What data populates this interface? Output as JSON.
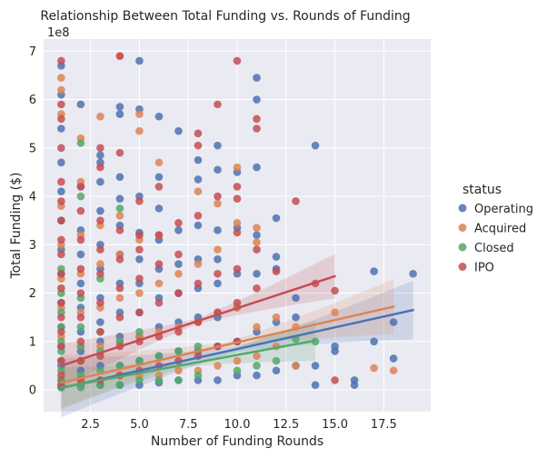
{
  "chart_data": {
    "type": "scatter",
    "title": "Relationship Between Total Funding vs. Rounds of Funding",
    "xlabel": "Number of Funding Rounds",
    "ylabel": "Total Funding ($)",
    "y_offset_label": "1e8",
    "xlim": [
      0.1,
      19.9
    ],
    "ylim": [
      -0.45,
      7.25
    ],
    "x_ticks": [
      2.5,
      5.0,
      7.5,
      10.0,
      12.5,
      15.0,
      17.5
    ],
    "x_tick_labels": [
      "2.5",
      "5.0",
      "7.5",
      "10.0",
      "12.5",
      "15.0",
      "17.5"
    ],
    "y_ticks": [
      0,
      1,
      2,
      3,
      4,
      5,
      6,
      7
    ],
    "y_tick_labels": [
      "0",
      "1",
      "2",
      "3",
      "4",
      "5",
      "6",
      "7"
    ],
    "grid": true,
    "background": "#eaeaf2",
    "legend": {
      "title": "status",
      "placement": "right"
    },
    "series": [
      {
        "name": "Operating",
        "color": "#4c72b0",
        "points": [
          [
            1,
            0.05
          ],
          [
            1,
            0.2
          ],
          [
            1,
            0.5
          ],
          [
            1,
            0.9
          ],
          [
            1,
            1.3
          ],
          [
            1,
            1.8
          ],
          [
            1,
            2.4
          ],
          [
            1,
            2.9
          ],
          [
            1,
            3.5
          ],
          [
            1,
            4.1
          ],
          [
            1,
            4.7
          ],
          [
            1,
            5.4
          ],
          [
            1,
            6.1
          ],
          [
            1,
            6.7
          ],
          [
            2,
            0.1
          ],
          [
            2,
            0.4
          ],
          [
            2,
            0.8
          ],
          [
            2,
            1.2
          ],
          [
            2,
            1.7
          ],
          [
            2,
            2.2
          ],
          [
            2,
            2.8
          ],
          [
            2,
            3.3
          ],
          [
            2,
            4.2
          ],
          [
            2,
            5.9
          ],
          [
            3,
            0.1
          ],
          [
            3,
            0.5
          ],
          [
            3,
            1.0
          ],
          [
            3,
            1.4
          ],
          [
            3,
            1.9
          ],
          [
            3,
            2.5
          ],
          [
            3,
            3.0
          ],
          [
            3,
            3.7
          ],
          [
            3,
            4.3
          ],
          [
            3,
            4.7
          ],
          [
            3,
            4.85
          ],
          [
            4,
            0.1
          ],
          [
            4,
            0.5
          ],
          [
            4,
            1.1
          ],
          [
            4,
            1.6
          ],
          [
            4,
            2.2
          ],
          [
            4,
            2.8
          ],
          [
            4,
            3.4
          ],
          [
            4,
            3.95
          ],
          [
            4,
            4.4
          ],
          [
            4,
            5.7
          ],
          [
            4,
            5.85
          ],
          [
            5,
            0.1
          ],
          [
            5,
            0.6
          ],
          [
            5,
            1.1
          ],
          [
            5,
            1.6
          ],
          [
            5,
            2.2
          ],
          [
            5,
            2.7
          ],
          [
            5,
            3.25
          ],
          [
            5,
            4.0
          ],
          [
            5,
            5.8
          ],
          [
            5,
            6.8
          ],
          [
            6,
            0.15
          ],
          [
            6,
            0.7
          ],
          [
            6,
            1.3
          ],
          [
            6,
            1.9
          ],
          [
            6,
            2.5
          ],
          [
            6,
            3.1
          ],
          [
            6,
            3.75
          ],
          [
            6,
            4.4
          ],
          [
            6,
            5.65
          ],
          [
            7,
            0.2
          ],
          [
            7,
            0.8
          ],
          [
            7,
            1.4
          ],
          [
            7,
            2.0
          ],
          [
            7,
            2.6
          ],
          [
            7,
            3.3
          ],
          [
            7,
            5.35
          ],
          [
            8,
            0.2
          ],
          [
            8,
            0.8
          ],
          [
            8,
            1.5
          ],
          [
            8,
            2.1
          ],
          [
            8,
            2.7
          ],
          [
            8,
            3.4
          ],
          [
            8,
            4.35
          ],
          [
            8,
            4.75
          ],
          [
            9,
            0.2
          ],
          [
            9,
            0.9
          ],
          [
            9,
            1.5
          ],
          [
            9,
            2.2
          ],
          [
            9,
            2.7
          ],
          [
            9,
            3.3
          ],
          [
            9,
            4.55
          ],
          [
            9,
            5.05
          ],
          [
            10,
            0.3
          ],
          [
            10,
            1.0
          ],
          [
            10,
            1.7
          ],
          [
            10,
            2.4
          ],
          [
            10,
            3.35
          ],
          [
            10,
            4.5
          ],
          [
            11,
            0.3
          ],
          [
            11,
            1.2
          ],
          [
            11,
            2.4
          ],
          [
            11,
            3.2
          ],
          [
            11,
            4.6
          ],
          [
            11,
            6.0
          ],
          [
            11,
            6.45
          ],
          [
            12,
            0.4
          ],
          [
            12,
            1.4
          ],
          [
            12,
            2.5
          ],
          [
            12,
            2.75
          ],
          [
            12,
            3.55
          ],
          [
            13,
            0.5
          ],
          [
            13,
            1.5
          ],
          [
            13,
            1.9
          ],
          [
            14,
            0.5
          ],
          [
            14,
            0.1
          ],
          [
            14,
            5.05
          ],
          [
            15,
            0.8
          ],
          [
            15,
            0.9
          ],
          [
            16,
            0.1
          ],
          [
            16,
            0.2
          ],
          [
            17,
            1.0
          ],
          [
            17,
            2.45
          ],
          [
            18,
            0.65
          ],
          [
            18,
            1.4
          ],
          [
            19,
            2.4
          ]
        ],
        "fit": {
          "x_start": 1,
          "x_end": 19,
          "y_start": 0.04,
          "y_end": 1.65
        }
      },
      {
        "name": "Acquired",
        "color": "#dd8452",
        "points": [
          [
            1,
            0.1
          ],
          [
            1,
            0.6
          ],
          [
            1,
            1.1
          ],
          [
            1,
            1.7
          ],
          [
            1,
            2.3
          ],
          [
            1,
            3.0
          ],
          [
            1,
            3.8
          ],
          [
            1,
            5.7
          ],
          [
            1,
            6.2
          ],
          [
            1,
            6.45
          ],
          [
            2,
            0.2
          ],
          [
            2,
            0.9
          ],
          [
            2,
            1.6
          ],
          [
            2,
            2.4
          ],
          [
            2,
            3.2
          ],
          [
            2,
            4.3
          ],
          [
            2,
            5.2
          ],
          [
            3,
            0.2
          ],
          [
            3,
            0.9
          ],
          [
            3,
            1.7
          ],
          [
            3,
            2.6
          ],
          [
            3,
            3.4
          ],
          [
            3,
            5.65
          ],
          [
            4,
            0.3
          ],
          [
            4,
            1.0
          ],
          [
            4,
            1.9
          ],
          [
            4,
            2.8
          ],
          [
            4,
            3.6
          ],
          [
            4,
            6.9
          ],
          [
            5,
            0.3
          ],
          [
            5,
            1.1
          ],
          [
            5,
            2.0
          ],
          [
            5,
            3.1
          ],
          [
            5,
            5.35
          ],
          [
            5,
            5.7
          ],
          [
            6,
            0.3
          ],
          [
            6,
            1.2
          ],
          [
            6,
            2.2
          ],
          [
            6,
            3.2
          ],
          [
            6,
            4.7
          ],
          [
            7,
            0.4
          ],
          [
            7,
            1.3
          ],
          [
            7,
            2.4
          ],
          [
            8,
            0.4
          ],
          [
            8,
            1.4
          ],
          [
            8,
            2.6
          ],
          [
            8,
            4.1
          ],
          [
            9,
            0.5
          ],
          [
            9,
            1.6
          ],
          [
            9,
            2.9
          ],
          [
            9,
            3.85
          ],
          [
            10,
            0.6
          ],
          [
            10,
            1.7
          ],
          [
            10,
            3.45
          ],
          [
            10,
            4.6
          ],
          [
            11,
            0.7
          ],
          [
            11,
            1.3
          ],
          [
            11,
            3.05
          ],
          [
            11,
            3.35
          ],
          [
            12,
            0.9
          ],
          [
            12,
            1.5
          ],
          [
            13,
            0.5
          ],
          [
            13,
            1.3
          ],
          [
            15,
            1.6
          ],
          [
            17,
            0.45
          ],
          [
            18,
            0.4
          ]
        ],
        "fit": {
          "x_start": 1,
          "x_end": 18,
          "y_start": 0.15,
          "y_end": 1.72
        }
      },
      {
        "name": "Closed",
        "color": "#55a868",
        "points": [
          [
            1,
            0.05
          ],
          [
            1,
            0.2
          ],
          [
            1,
            0.4
          ],
          [
            1,
            0.6
          ],
          [
            1,
            0.8
          ],
          [
            1,
            1.0
          ],
          [
            1,
            1.3
          ],
          [
            1,
            1.6
          ],
          [
            1,
            2.0
          ],
          [
            1,
            2.5
          ],
          [
            2,
            0.05
          ],
          [
            2,
            0.3
          ],
          [
            2,
            0.6
          ],
          [
            2,
            0.9
          ],
          [
            2,
            1.3
          ],
          [
            2,
            1.9
          ],
          [
            2,
            4.0
          ],
          [
            2,
            5.1
          ],
          [
            3,
            0.1
          ],
          [
            3,
            0.4
          ],
          [
            3,
            0.8
          ],
          [
            3,
            1.2
          ],
          [
            3,
            2.3
          ],
          [
            4,
            0.1
          ],
          [
            4,
            0.5
          ],
          [
            4,
            1.0
          ],
          [
            4,
            3.75
          ],
          [
            5,
            0.2
          ],
          [
            5,
            0.6
          ],
          [
            5,
            1.2
          ],
          [
            6,
            0.2
          ],
          [
            6,
            0.7
          ],
          [
            7,
            0.2
          ],
          [
            7,
            0.8
          ],
          [
            8,
            0.3
          ],
          [
            8,
            0.9
          ],
          [
            10,
            0.4
          ],
          [
            11,
            0.5
          ],
          [
            12,
            0.6
          ],
          [
            13,
            1.05
          ],
          [
            14,
            1.0
          ]
        ],
        "fit": {
          "x_start": 1,
          "x_end": 14,
          "y_start": 0.05,
          "y_end": 1.02
        }
      },
      {
        "name": "IPO",
        "color": "#c44e52",
        "points": [
          [
            1,
            0.1
          ],
          [
            1,
            0.3
          ],
          [
            1,
            0.6
          ],
          [
            1,
            0.9
          ],
          [
            1,
            1.2
          ],
          [
            1,
            1.5
          ],
          [
            1,
            1.8
          ],
          [
            1,
            2.1
          ],
          [
            1,
            2.4
          ],
          [
            1,
            2.8
          ],
          [
            1,
            3.1
          ],
          [
            1,
            3.5
          ],
          [
            1,
            3.9
          ],
          [
            1,
            4.3
          ],
          [
            1,
            5.0
          ],
          [
            1,
            5.6
          ],
          [
            1,
            5.9
          ],
          [
            1,
            6.8
          ],
          [
            2,
            0.2
          ],
          [
            2,
            0.6
          ],
          [
            2,
            1.0
          ],
          [
            2,
            1.5
          ],
          [
            2,
            2.0
          ],
          [
            2,
            2.5
          ],
          [
            2,
            3.1
          ],
          [
            2,
            3.7
          ],
          [
            2,
            4.2
          ],
          [
            3,
            0.2
          ],
          [
            3,
            0.7
          ],
          [
            3,
            1.2
          ],
          [
            3,
            1.8
          ],
          [
            3,
            2.4
          ],
          [
            3,
            2.9
          ],
          [
            3,
            3.5
          ],
          [
            3,
            4.6
          ],
          [
            3,
            5.0
          ],
          [
            4,
            0.3
          ],
          [
            4,
            0.9
          ],
          [
            4,
            1.5
          ],
          [
            4,
            2.1
          ],
          [
            4,
            2.7
          ],
          [
            4,
            3.3
          ],
          [
            4,
            4.9
          ],
          [
            4,
            6.9
          ],
          [
            5,
            0.4
          ],
          [
            5,
            1.0
          ],
          [
            5,
            1.6
          ],
          [
            5,
            2.3
          ],
          [
            5,
            2.9
          ],
          [
            5,
            3.2
          ],
          [
            5,
            3.9
          ],
          [
            6,
            0.5
          ],
          [
            6,
            1.1
          ],
          [
            6,
            1.8
          ],
          [
            6,
            2.6
          ],
          [
            6,
            3.2
          ],
          [
            6,
            4.2
          ],
          [
            7,
            0.6
          ],
          [
            7,
            1.2
          ],
          [
            7,
            2.0
          ],
          [
            7,
            2.8
          ],
          [
            7,
            3.45
          ],
          [
            8,
            0.7
          ],
          [
            8,
            1.4
          ],
          [
            8,
            2.2
          ],
          [
            8,
            3.6
          ],
          [
            8,
            5.05
          ],
          [
            8,
            5.3
          ],
          [
            9,
            0.9
          ],
          [
            9,
            1.6
          ],
          [
            9,
            2.4
          ],
          [
            9,
            4.0
          ],
          [
            9,
            5.9
          ],
          [
            10,
            1.0
          ],
          [
            10,
            1.8
          ],
          [
            10,
            2.5
          ],
          [
            10,
            3.25
          ],
          [
            10,
            3.95
          ],
          [
            10,
            4.2
          ],
          [
            10,
            6.8
          ],
          [
            11,
            2.1
          ],
          [
            11,
            2.9
          ],
          [
            11,
            5.4
          ],
          [
            11,
            5.6
          ],
          [
            12,
            2.45
          ],
          [
            13,
            3.9
          ],
          [
            14,
            2.2
          ],
          [
            15,
            2.05
          ],
          [
            15,
            0.2
          ]
        ],
        "fit": {
          "x_start": 1,
          "x_end": 15,
          "y_start": 0.5,
          "y_end": 2.35
        }
      }
    ]
  }
}
